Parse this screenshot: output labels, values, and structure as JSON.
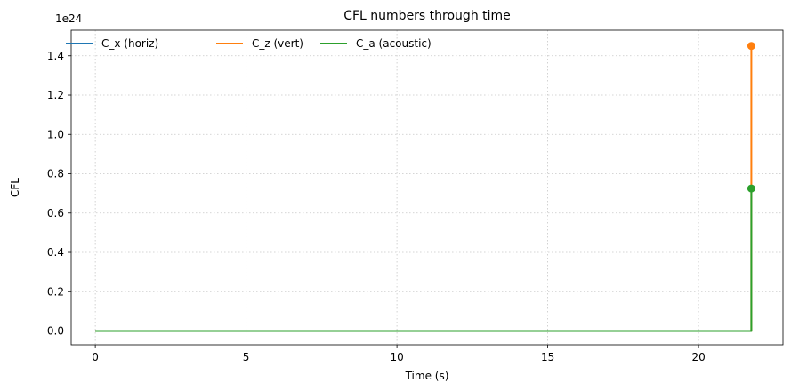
{
  "chart_data": {
    "type": "line",
    "title": "CFL numbers through time",
    "xlabel": "Time (s)",
    "ylabel": "CFL",
    "y_offset_label": "1e24",
    "y_scale_factor": 1e+24,
    "xlim": [
      -0.8,
      22.8
    ],
    "ylim": [
      -0.07,
      1.53
    ],
    "xticks": [
      0,
      5,
      10,
      15,
      20
    ],
    "xtick_labels": [
      "0",
      "5",
      "10",
      "15",
      "20"
    ],
    "yticks": [
      0.0,
      0.2,
      0.4,
      0.6,
      0.8,
      1.0,
      1.2,
      1.4
    ],
    "ytick_labels": [
      "0.0",
      "0.2",
      "0.4",
      "0.6",
      "0.8",
      "1.0",
      "1.2",
      "1.4"
    ],
    "grid": true,
    "legend_position": "top-left",
    "series": [
      {
        "name": "C_x (horiz)",
        "color": "#1f77b4",
        "x": [
          0,
          21.75,
          21.75
        ],
        "y": [
          0,
          0,
          0
        ],
        "marker_last": false
      },
      {
        "name": "C_z (vert)",
        "color": "#ff7f0e",
        "x": [
          0,
          21.75,
          21.75
        ],
        "y": [
          0,
          0,
          1.45
        ],
        "marker_last": true
      },
      {
        "name": "C_a (acoustic)",
        "color": "#2ca02c",
        "x": [
          0,
          21.75,
          21.75
        ],
        "y": [
          0,
          0,
          0.725
        ],
        "marker_last": true
      }
    ]
  }
}
